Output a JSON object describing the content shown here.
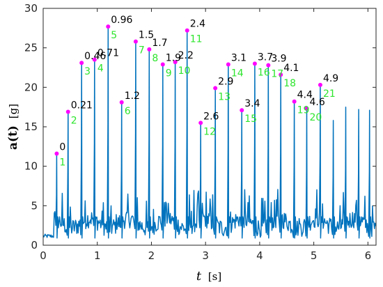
{
  "chart_data": {
    "type": "line",
    "xlabel_var": "t",
    "xlabel_unit": "[s]",
    "ylabel_var": "a(t)",
    "ylabel_unit": "[g]",
    "xlim": [
      0,
      6.15
    ],
    "ylim": [
      0,
      30
    ],
    "xticks": [
      0,
      1,
      2,
      3,
      4,
      5,
      6
    ],
    "yticks": [
      0,
      5,
      10,
      15,
      20,
      25,
      30
    ],
    "grid": false,
    "colors": {
      "line": "#0072BD",
      "marker": "#ff00ff",
      "index_label": "#2ee52e",
      "value_label": "#000000"
    },
    "peaks": [
      {
        "index": "1",
        "value_label": "0",
        "x": 0.25,
        "y": 11.6
      },
      {
        "index": "2",
        "value_label": "0.21",
        "x": 0.46,
        "y": 16.9
      },
      {
        "index": "3",
        "value_label": "0.46",
        "x": 0.71,
        "y": 23.1
      },
      {
        "index": "4",
        "value_label": "0.71",
        "x": 0.95,
        "y": 23.5
      },
      {
        "index": "5",
        "value_label": "0.96",
        "x": 1.2,
        "y": 27.7
      },
      {
        "index": "6",
        "value_label": "1.2",
        "x": 1.45,
        "y": 18.1
      },
      {
        "index": "7",
        "value_label": "1.5",
        "x": 1.71,
        "y": 25.8
      },
      {
        "index": "8",
        "value_label": "1.7",
        "x": 1.96,
        "y": 24.8
      },
      {
        "index": "9",
        "value_label": "1.9",
        "x": 2.21,
        "y": 22.9
      },
      {
        "index": "10",
        "value_label": "2.2",
        "x": 2.44,
        "y": 23.2
      },
      {
        "index": "11",
        "value_label": "2.4",
        "x": 2.66,
        "y": 27.2
      },
      {
        "index": "12",
        "value_label": "2.6",
        "x": 2.91,
        "y": 15.5
      },
      {
        "index": "13",
        "value_label": "2.9",
        "x": 3.18,
        "y": 19.9
      },
      {
        "index": "14",
        "value_label": "3.1",
        "x": 3.42,
        "y": 22.9
      },
      {
        "index": "15",
        "value_label": "3.4",
        "x": 3.67,
        "y": 17.1
      },
      {
        "index": "16",
        "value_label": "3.7",
        "x": 3.91,
        "y": 23.0
      },
      {
        "index": "17",
        "value_label": "3.9",
        "x": 4.16,
        "y": 22.8
      },
      {
        "index": "18",
        "value_label": "4.1",
        "x": 4.39,
        "y": 21.6
      },
      {
        "index": "19",
        "value_label": "4.4",
        "x": 4.64,
        "y": 18.2
      },
      {
        "index": "20",
        "value_label": "4.6",
        "x": 4.87,
        "y": 17.3
      },
      {
        "index": "21",
        "value_label": "4.9",
        "x": 5.12,
        "y": 20.3
      }
    ],
    "trailing_peaks": [
      {
        "x": 5.36,
        "y": 15.8
      },
      {
        "x": 5.59,
        "y": 17.5
      },
      {
        "x": 5.83,
        "y": 17.2
      },
      {
        "x": 6.03,
        "y": 17.1
      }
    ]
  }
}
